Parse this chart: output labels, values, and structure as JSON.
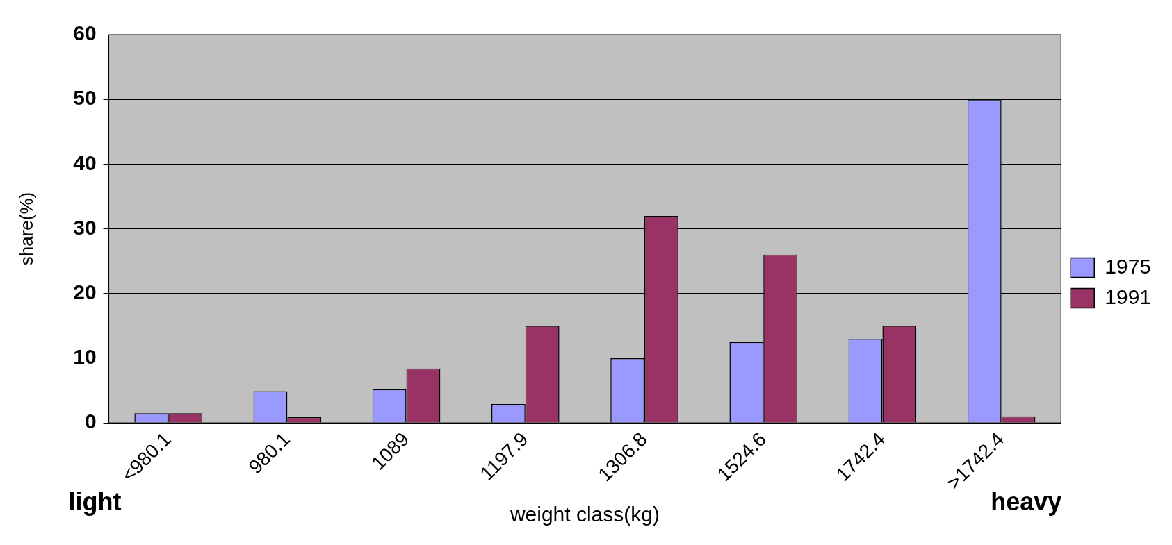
{
  "chart_data": {
    "type": "bar",
    "ylabel": "share(%)",
    "xlabel": "weight class(kg)",
    "categories": [
      "<980.1",
      "980.1",
      "1089",
      "1197.9",
      "1306.8",
      "1524.6",
      "1742.4",
      ">1742.4"
    ],
    "series": [
      {
        "name": "1975",
        "color": "#9999ff",
        "values": [
          1.5,
          4.9,
          5.2,
          2.9,
          10,
          12.5,
          13,
          50
        ]
      },
      {
        "name": "1991",
        "color": "#993366",
        "values": [
          1.5,
          0.9,
          8.4,
          15,
          32,
          26,
          15,
          1
        ]
      }
    ],
    "ylim": [
      0,
      60
    ],
    "yticks": [
      0,
      10,
      20,
      30,
      40,
      50,
      60
    ],
    "grid": "y",
    "legend": "right",
    "annotations": [
      "light",
      "heavy"
    ]
  }
}
